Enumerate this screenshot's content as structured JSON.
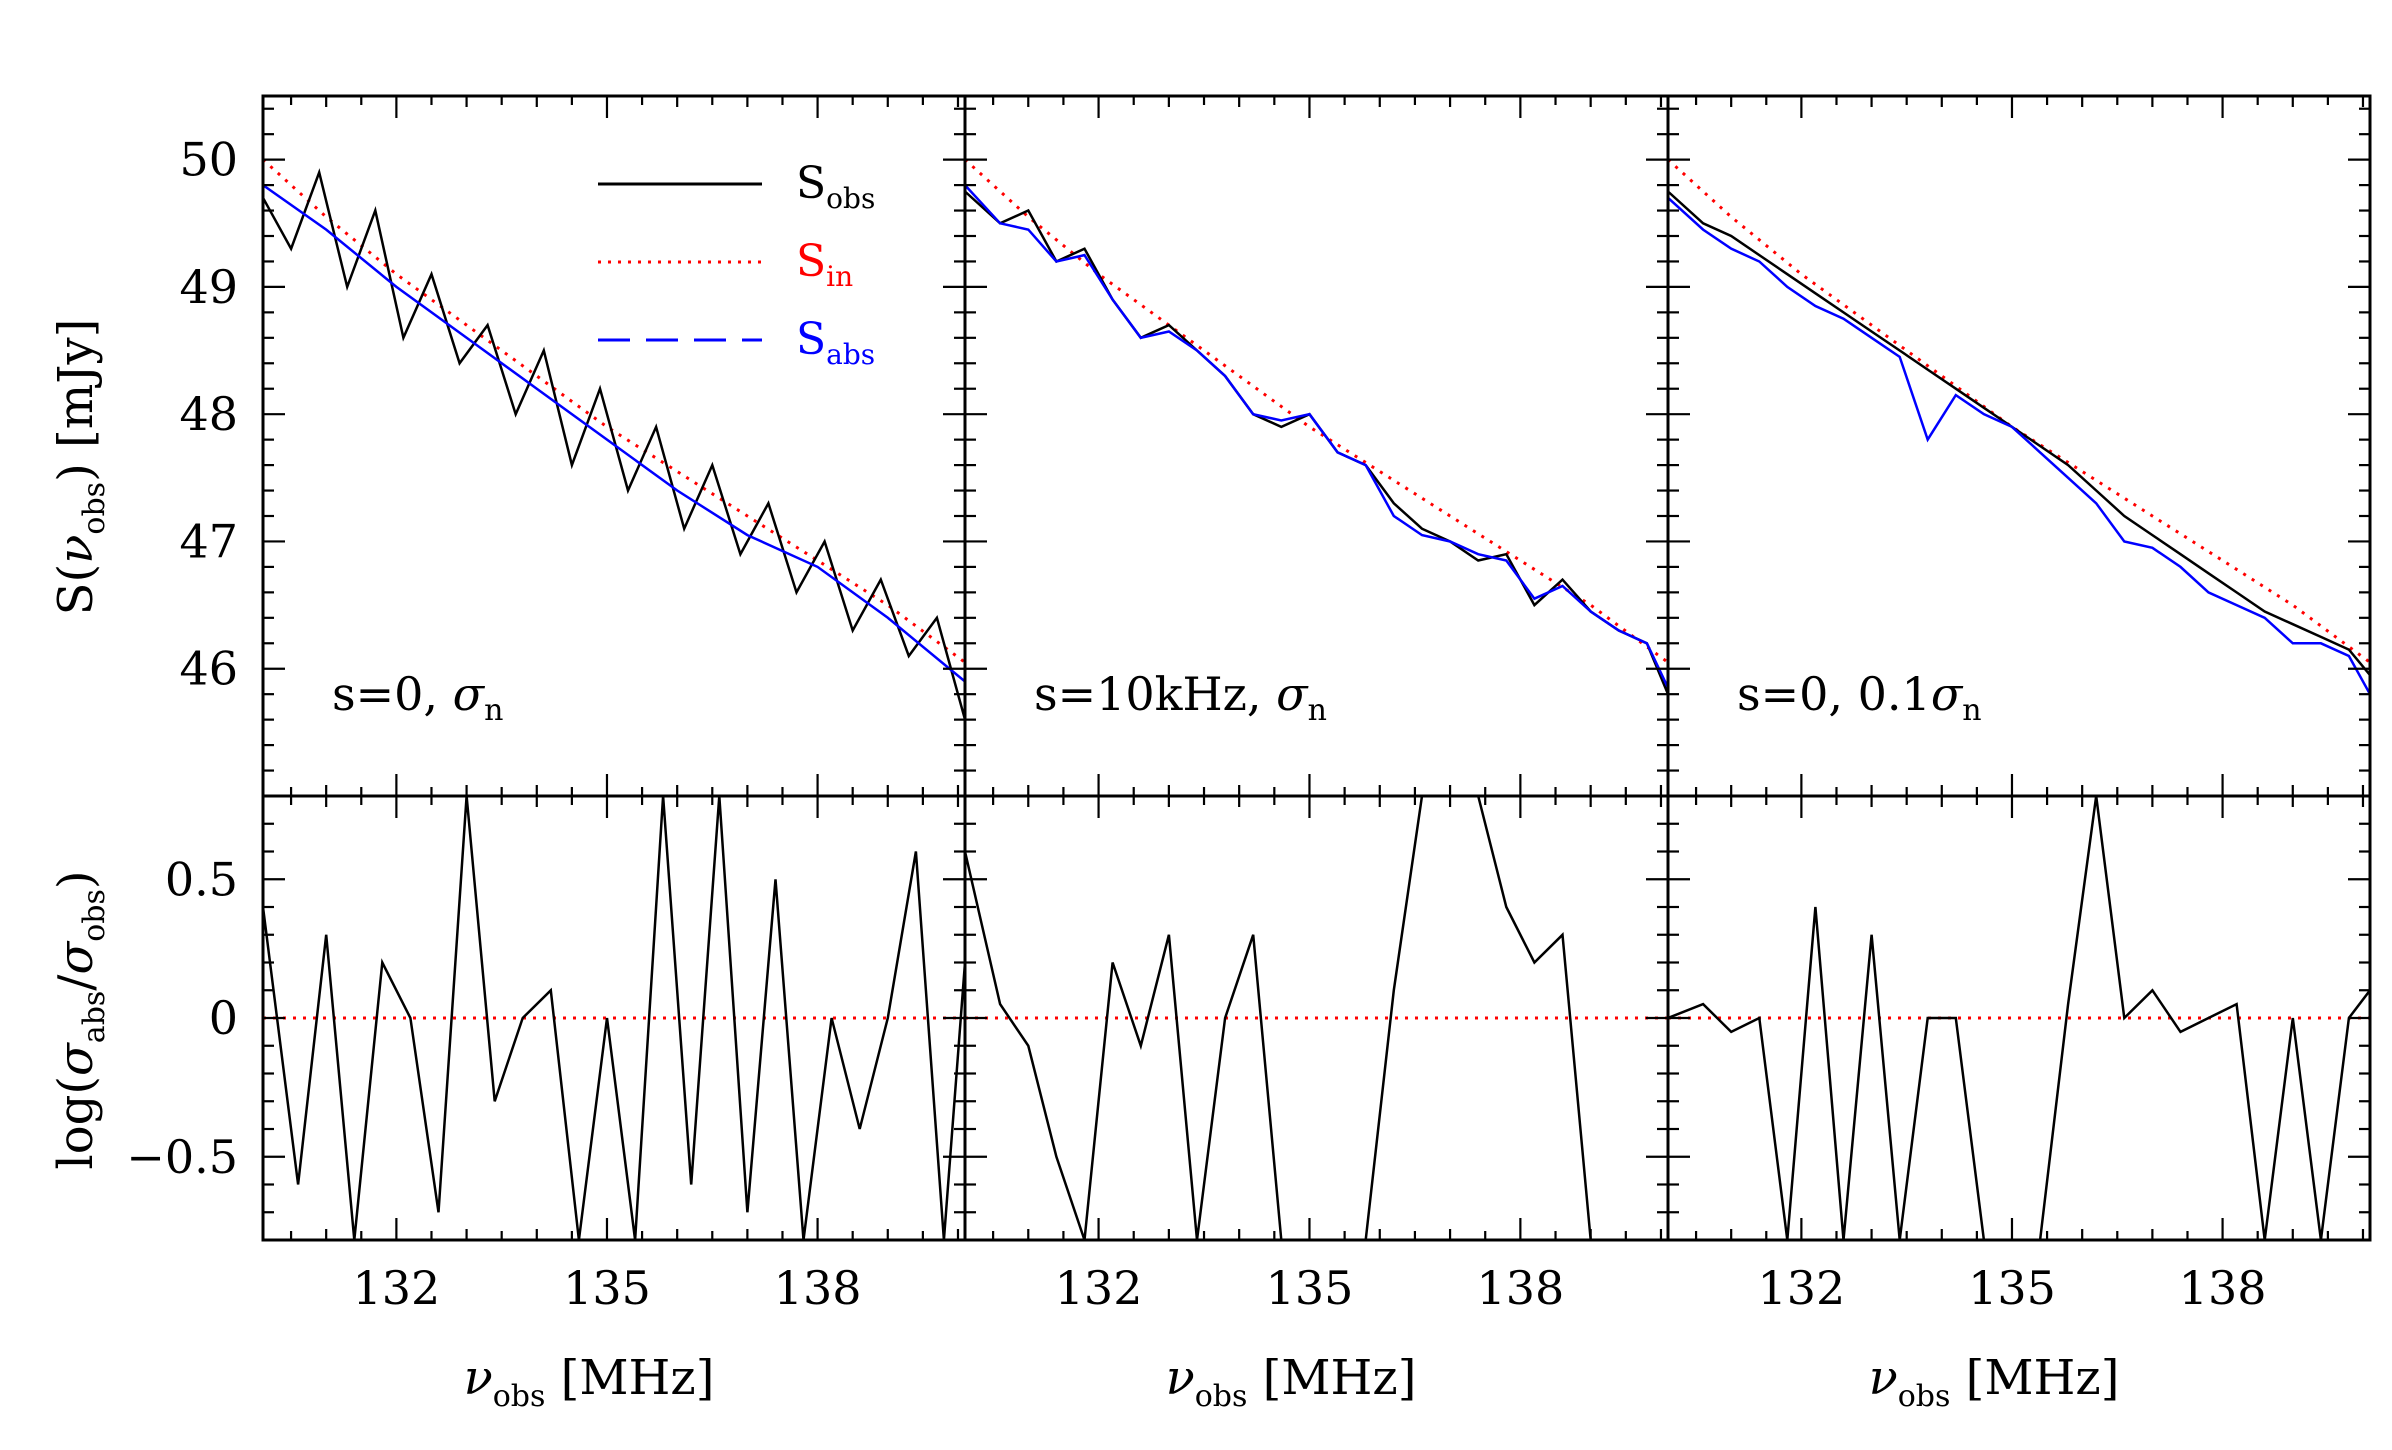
{
  "figure": {
    "ylabel_top": {
      "main": "S(",
      "var": "ν",
      "sub": "obs",
      "end": ")  [mJy]"
    },
    "ylabel_bottom": {
      "main": "log(",
      "var1": "σ",
      "sub1": "abs",
      "slash": "/",
      "var2": "σ",
      "sub2": "obs",
      "end": ")"
    },
    "xlabel": {
      "var": "ν",
      "sub": "obs",
      "unit": "  [MHz]"
    },
    "legend": [
      {
        "name": "S",
        "sub": "obs",
        "color": "#000000",
        "style": "solid"
      },
      {
        "name": "S",
        "sub": "in",
        "color": "#ff0000",
        "style": "dotted"
      },
      {
        "name": "S",
        "sub": "abs",
        "color": "#0000ff",
        "style": "dashed"
      }
    ],
    "colors": {
      "observed": "#000000",
      "intrinsic": "#ff0000",
      "absorbed": "#0000ff",
      "zero": "#ff0000"
    }
  },
  "chart_data": [
    {
      "type": "line",
      "panel": "s=0, σn",
      "annotation": {
        "text": "s=0,  ",
        "var": "σ",
        "sub": "n"
      },
      "xlim": [
        130.1,
        140.1
      ],
      "ylim_top": [
        45.0,
        50.5
      ],
      "ylim_bottom": [
        -0.8,
        0.8
      ],
      "xticks": [
        132,
        135,
        138
      ],
      "yticks_top": [
        46,
        47,
        48,
        49,
        50
      ],
      "yticks_bottom": [
        -0.5,
        0,
        0.5
      ],
      "ytick_labels_top": [
        "46",
        "47",
        "48",
        "49",
        "50"
      ],
      "ytick_labels_bottom": [
        "−0.5",
        "0",
        "0.5"
      ],
      "xtick_labels": [
        "132",
        "135",
        "138"
      ],
      "intrinsic": {
        "x": [
          130.1,
          131.0,
          132.0,
          133.0,
          134.0,
          135.0,
          136.0,
          137.0,
          138.0,
          139.0,
          140.1
        ],
        "y": [
          50.0,
          49.55,
          49.1,
          48.7,
          48.3,
          47.9,
          47.55,
          47.2,
          46.85,
          46.5,
          46.05
        ]
      },
      "observed": {
        "x": [
          130.1,
          130.5,
          130.9,
          131.3,
          131.7,
          132.1,
          132.5,
          132.9,
          133.3,
          133.7,
          134.1,
          134.5,
          134.9,
          135.3,
          135.7,
          136.1,
          136.5,
          136.9,
          137.3,
          137.7,
          138.1,
          138.5,
          138.9,
          139.3,
          139.7,
          140.1
        ],
        "y": [
          49.7,
          49.3,
          49.9,
          49.0,
          49.6,
          48.6,
          49.1,
          48.4,
          48.7,
          48.0,
          48.5,
          47.6,
          48.2,
          47.4,
          47.9,
          47.1,
          47.6,
          46.9,
          47.3,
          46.6,
          47.0,
          46.3,
          46.7,
          46.1,
          46.4,
          45.6
        ]
      },
      "absorbed": {
        "x": [
          130.1,
          131.0,
          132.0,
          133.0,
          134.0,
          135.0,
          136.0,
          137.0,
          138.0,
          139.0,
          140.1
        ],
        "y": [
          49.8,
          49.45,
          49.0,
          48.6,
          48.2,
          47.8,
          47.4,
          47.05,
          46.8,
          46.4,
          45.9
        ]
      },
      "ratio": {
        "x": [
          130.1,
          130.6,
          131.0,
          131.4,
          131.8,
          132.2,
          132.6,
          133.0,
          133.4,
          133.8,
          134.2,
          134.6,
          135.0,
          135.4,
          135.8,
          136.2,
          136.6,
          137.0,
          137.4,
          137.8,
          138.2,
          138.6,
          139.0,
          139.4,
          139.8,
          140.1
        ],
        "y": [
          0.4,
          -0.6,
          0.3,
          -0.8,
          0.2,
          0.0,
          -0.7,
          0.8,
          -0.3,
          0.0,
          0.1,
          -0.8,
          0.0,
          -0.8,
          0.8,
          -0.6,
          0.8,
          -0.7,
          0.5,
          -0.8,
          0.0,
          -0.4,
          0.0,
          0.6,
          -0.8,
          0.2
        ]
      }
    },
    {
      "type": "line",
      "panel": "s=10kHz, σn",
      "annotation": {
        "text": "s=10kHz,  ",
        "var": "σ",
        "sub": "n"
      },
      "xlim": [
        130.1,
        140.1
      ],
      "ylim_top": [
        45.0,
        50.5
      ],
      "ylim_bottom": [
        -0.8,
        0.8
      ],
      "xticks": [
        132,
        135,
        138
      ],
      "yticks_top": [
        46,
        47,
        48,
        49,
        50
      ],
      "yticks_bottom": [
        -0.5,
        0,
        0.5
      ],
      "xtick_labels": [
        "132",
        "135",
        "138"
      ],
      "intrinsic": {
        "x": [
          130.1,
          131.0,
          132.0,
          133.0,
          134.0,
          135.0,
          136.0,
          137.0,
          138.0,
          139.0,
          140.1
        ],
        "y": [
          50.0,
          49.55,
          49.1,
          48.7,
          48.3,
          47.9,
          47.55,
          47.2,
          46.85,
          46.5,
          46.05
        ]
      },
      "observed": {
        "x": [
          130.1,
          130.6,
          131.0,
          131.4,
          131.8,
          132.2,
          132.6,
          133.0,
          133.4,
          133.8,
          134.2,
          134.6,
          135.0,
          135.4,
          135.8,
          136.2,
          136.6,
          137.0,
          137.4,
          137.8,
          138.2,
          138.6,
          139.0,
          139.4,
          139.8,
          140.1
        ],
        "y": [
          49.75,
          49.5,
          49.6,
          49.2,
          49.3,
          48.9,
          48.6,
          48.7,
          48.5,
          48.3,
          48.0,
          47.9,
          48.0,
          47.7,
          47.6,
          47.3,
          47.1,
          47.0,
          46.85,
          46.9,
          46.5,
          46.7,
          46.45,
          46.3,
          46.2,
          45.8
        ]
      },
      "absorbed": {
        "x": [
          130.1,
          130.6,
          131.0,
          131.4,
          131.8,
          132.2,
          132.6,
          133.0,
          133.4,
          133.8,
          134.2,
          134.6,
          135.0,
          135.4,
          135.8,
          136.2,
          136.6,
          137.0,
          137.4,
          137.8,
          138.2,
          138.6,
          139.0,
          139.4,
          139.8,
          140.1
        ],
        "y": [
          49.8,
          49.5,
          49.45,
          49.2,
          49.25,
          48.9,
          48.6,
          48.65,
          48.5,
          48.3,
          48.0,
          47.95,
          48.0,
          47.7,
          47.6,
          47.2,
          47.05,
          47.0,
          46.9,
          46.85,
          46.55,
          46.65,
          46.45,
          46.3,
          46.2,
          45.85
        ]
      },
      "ratio": {
        "x": [
          130.1,
          130.6,
          131.0,
          131.4,
          131.8,
          132.2,
          132.6,
          133.0,
          133.4,
          133.8,
          134.2,
          134.6,
          135.0,
          135.4,
          135.8,
          136.2,
          136.6,
          137.0,
          137.4,
          137.8,
          138.2,
          138.6,
          139.0,
          139.4,
          139.8,
          140.1
        ],
        "y": [
          0.6,
          0.05,
          -0.1,
          -0.5,
          -0.8,
          0.2,
          -0.1,
          0.3,
          -0.8,
          0.0,
          0.3,
          -0.8,
          -0.8,
          -0.8,
          -0.8,
          0.1,
          0.8,
          0.8,
          0.8,
          0.4,
          0.2,
          0.3,
          -0.8,
          -0.8,
          -0.8,
          -0.8
        ]
      },
      "noise_frequency_spacing": "10kHz"
    },
    {
      "type": "line",
      "panel": "s=0, 0.1σn",
      "annotation": {
        "text": "s=0,  0.1",
        "var": "σ",
        "sub": "n"
      },
      "xlim": [
        130.1,
        140.1
      ],
      "ylim_top": [
        45.0,
        50.5
      ],
      "ylim_bottom": [
        -0.8,
        0.8
      ],
      "xticks": [
        132,
        135,
        138
      ],
      "yticks_top": [
        46,
        47,
        48,
        49,
        50
      ],
      "yticks_bottom": [
        -0.5,
        0,
        0.5
      ],
      "xtick_labels": [
        "132",
        "135",
        "138"
      ],
      "intrinsic": {
        "x": [
          130.1,
          131.0,
          132.0,
          133.0,
          134.0,
          135.0,
          136.0,
          137.0,
          138.0,
          139.0,
          140.1
        ],
        "y": [
          50.0,
          49.55,
          49.1,
          48.7,
          48.3,
          47.9,
          47.55,
          47.2,
          46.85,
          46.5,
          46.05
        ]
      },
      "observed": {
        "x": [
          130.1,
          130.6,
          131.0,
          131.4,
          131.8,
          132.2,
          132.6,
          133.0,
          133.4,
          133.8,
          134.2,
          134.6,
          135.0,
          135.4,
          135.8,
          136.2,
          136.6,
          137.0,
          137.4,
          137.8,
          138.2,
          138.6,
          139.0,
          139.4,
          139.8,
          140.1
        ],
        "y": [
          49.75,
          49.5,
          49.4,
          49.25,
          49.1,
          48.95,
          48.8,
          48.65,
          48.5,
          48.35,
          48.2,
          48.05,
          47.9,
          47.75,
          47.6,
          47.4,
          47.2,
          47.05,
          46.9,
          46.75,
          46.6,
          46.45,
          46.35,
          46.25,
          46.15,
          45.95
        ]
      },
      "absorbed": {
        "x": [
          130.1,
          130.6,
          131.0,
          131.4,
          131.8,
          132.2,
          132.6,
          133.0,
          133.4,
          133.8,
          134.2,
          134.6,
          135.0,
          135.4,
          135.8,
          136.2,
          136.6,
          137.0,
          137.4,
          137.8,
          138.2,
          138.6,
          139.0,
          139.4,
          139.8,
          140.1
        ],
        "y": [
          49.7,
          49.45,
          49.3,
          49.2,
          49.0,
          48.85,
          48.75,
          48.6,
          48.45,
          47.8,
          48.15,
          48.0,
          47.9,
          47.7,
          47.5,
          47.3,
          47.0,
          46.95,
          46.8,
          46.6,
          46.5,
          46.4,
          46.2,
          46.2,
          46.1,
          45.8
        ]
      },
      "ratio": {
        "x": [
          130.1,
          130.6,
          131.0,
          131.4,
          131.8,
          132.2,
          132.6,
          133.0,
          133.4,
          133.8,
          134.2,
          134.6,
          135.0,
          135.4,
          135.8,
          136.2,
          136.6,
          137.0,
          137.4,
          137.8,
          138.2,
          138.6,
          139.0,
          139.4,
          139.8,
          140.1
        ],
        "y": [
          0.0,
          0.05,
          -0.05,
          0.0,
          -0.8,
          0.4,
          -0.8,
          0.3,
          -0.8,
          0.0,
          0.0,
          -0.8,
          -0.8,
          -0.8,
          0.05,
          0.8,
          0.0,
          0.1,
          -0.05,
          0.0,
          0.05,
          -0.8,
          0.0,
          -0.8,
          0.0,
          0.1
        ]
      }
    }
  ]
}
